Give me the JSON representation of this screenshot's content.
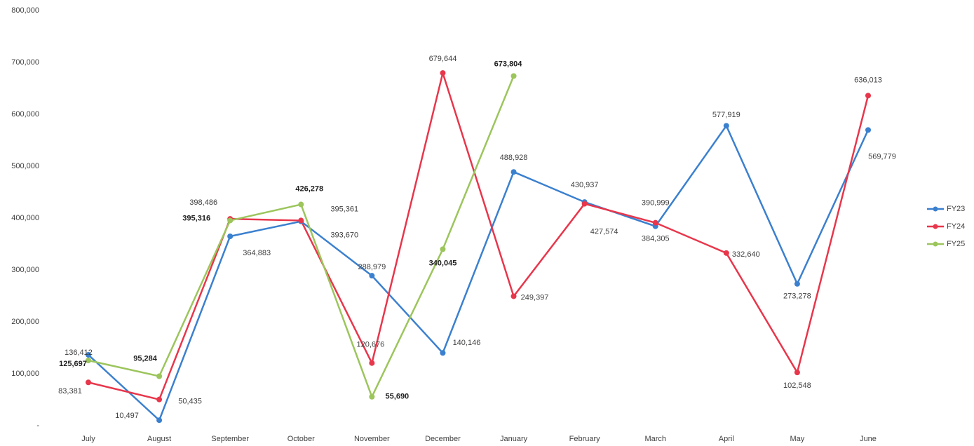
{
  "chart_data": {
    "type": "line",
    "categories": [
      "July",
      "August",
      "September",
      "October",
      "November",
      "December",
      "January",
      "February",
      "March",
      "April",
      "May",
      "June"
    ],
    "ylim": [
      0,
      800000
    ],
    "yticks": [
      {
        "value": 0,
        "label": "-"
      },
      {
        "value": 100000,
        "label": "100,000"
      },
      {
        "value": 200000,
        "label": "200,000"
      },
      {
        "value": 300000,
        "label": "300,000"
      },
      {
        "value": 400000,
        "label": "400,000"
      },
      {
        "value": 500000,
        "label": "500,000"
      },
      {
        "value": 600000,
        "label": "600,000"
      },
      {
        "value": 700000,
        "label": "700,000"
      },
      {
        "value": 800000,
        "label": "800,000"
      }
    ],
    "legend": "right",
    "series": [
      {
        "name": "FY23",
        "color": "#3b80cf",
        "values": [
          136412,
          10497,
          364883,
          393670,
          288979,
          140146,
          488928,
          430937,
          384305,
          577919,
          273278,
          569779
        ],
        "value_labels": [
          "136,412",
          "10,497",
          "364,883",
          "393,670",
          "288,979",
          "140,146",
          "488,928",
          "430,937",
          "384,305",
          "577,919",
          "273,278",
          "569,779"
        ]
      },
      {
        "name": "FY24",
        "color": "#e8364b",
        "values": [
          83381,
          50435,
          398486,
          395361,
          120676,
          679644,
          249397,
          427574,
          390999,
          332640,
          102548,
          636013
        ],
        "value_labels": [
          "83,381",
          "50,435",
          "398,486",
          "395,361",
          "120,676",
          "679,644",
          "249,397",
          "427,574",
          "390,999",
          "332,640",
          "102,548",
          "636,013"
        ]
      },
      {
        "name": "FY25",
        "color": "#9cc55c",
        "values": [
          125697,
          95284,
          395316,
          426278,
          55690,
          340045,
          673804,
          null,
          null,
          null,
          null,
          null
        ],
        "value_labels": [
          "125,697",
          "95,284",
          "395,316",
          "426,278",
          "55,690",
          "340,045",
          "673,804",
          null,
          null,
          null,
          null,
          null
        ]
      }
    ]
  }
}
